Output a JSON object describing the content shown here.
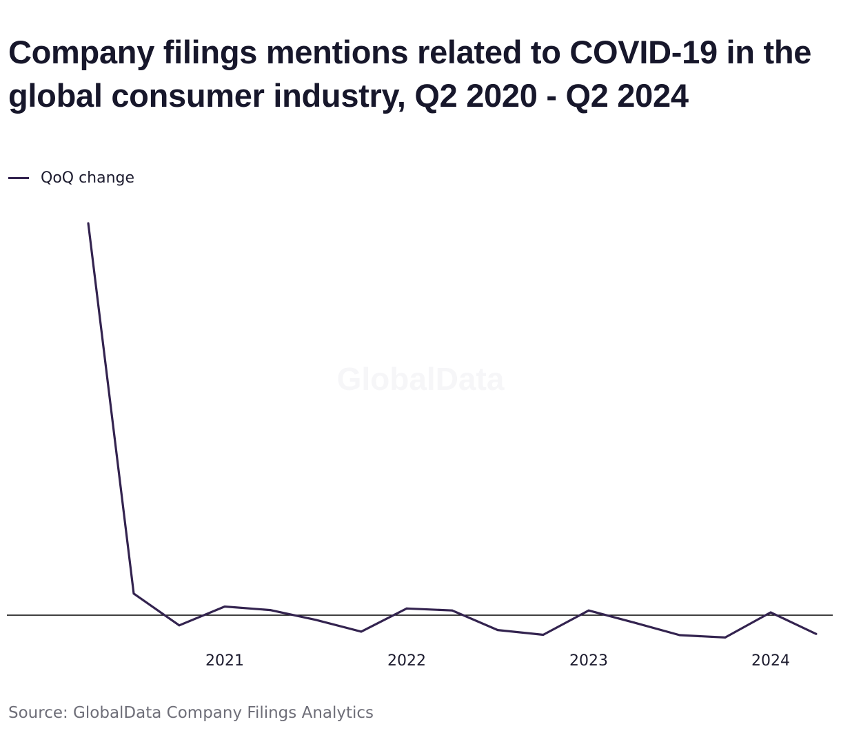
{
  "title": "Company filings mentions related to COVID-19 in the global consumer industry, Q2 2020 - Q2 2024",
  "watermark": "GlobalData",
  "source": "Source: GlobalData Company Filings Analytics",
  "colors": {
    "series": "#33234f",
    "axis": "#000000",
    "text": "#1c1b2e",
    "source": "#6e6e78"
  },
  "chart_data": {
    "type": "line",
    "title": "Company filings mentions related to COVID-19 in the global consumer industry, Q2 2020 - Q2 2024",
    "xlabel": "",
    "ylabel": "",
    "x": [
      "Q2 2020",
      "Q3 2020",
      "Q4 2020",
      "Q1 2021",
      "Q2 2021",
      "Q3 2021",
      "Q4 2021",
      "Q1 2022",
      "Q2 2022",
      "Q3 2022",
      "Q4 2022",
      "Q1 2023",
      "Q2 2023",
      "Q3 2023",
      "Q4 2023",
      "Q1 2024",
      "Q2 2024"
    ],
    "x_ticks": [
      {
        "label": "2021",
        "quarter_index": 3
      },
      {
        "label": "2022",
        "quarter_index": 7
      },
      {
        "label": "2023",
        "quarter_index": 11
      },
      {
        "label": "2024",
        "quarter_index": 15
      }
    ],
    "series": [
      {
        "name": "QoQ change",
        "values": [
          100,
          5.5,
          -2.6,
          2.2,
          1.3,
          -1.2,
          -4.2,
          1.7,
          1.2,
          -3.8,
          -5.0,
          1.2,
          -1.9,
          -5.1,
          -5.7,
          0.7,
          -4.8
        ]
      }
    ],
    "ylim": [
      -7,
      100
    ],
    "zero_line": true,
    "grid": false,
    "legend": "top-left"
  }
}
